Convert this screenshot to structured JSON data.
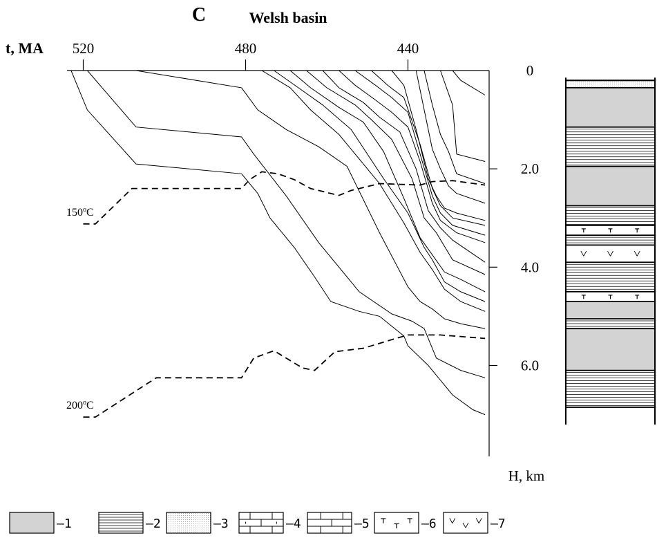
{
  "chart_data": {
    "type": "line",
    "panel_letter": "C",
    "title": "Welsh basin",
    "xlabel": "t, MA",
    "ylabel": "H, km",
    "x_ticks": [
      "520",
      "480",
      "440"
    ],
    "y_ticks": [
      "0",
      "2.0",
      "4.0",
      "6.0"
    ],
    "xlim": [
      524,
      420
    ],
    "ylim": [
      0,
      7.85
    ],
    "burial_curves": [
      {
        "x": [
          523,
          519,
          507,
          481,
          477,
          474,
          468,
          463,
          459,
          452,
          447,
          441,
          440,
          435,
          429,
          424,
          421
        ],
        "y": [
          0,
          0.8,
          1.9,
          2.1,
          2.5,
          3.0,
          3.6,
          4.2,
          4.7,
          4.9,
          5.0,
          5.4,
          5.6,
          6.0,
          6.6,
          6.9,
          7.0
        ]
      },
      {
        "x": [
          519,
          507,
          481,
          478,
          470,
          462,
          452,
          444,
          439,
          436,
          433,
          427,
          421
        ],
        "y": [
          0,
          1.15,
          1.35,
          1.7,
          2.55,
          3.5,
          4.5,
          4.95,
          5.1,
          5.25,
          5.85,
          6.1,
          6.25
        ]
      },
      {
        "x": [
          507,
          481,
          477,
          470,
          462,
          455,
          447,
          440,
          437,
          434,
          431,
          427,
          421
        ],
        "y": [
          0,
          0.35,
          0.8,
          1.2,
          1.55,
          1.95,
          3.3,
          4.4,
          4.7,
          4.85,
          5.05,
          5.15,
          5.25
        ]
      },
      {
        "x": [
          476,
          469,
          464,
          457,
          447,
          441,
          437,
          434,
          431,
          427,
          421
        ],
        "y": [
          0,
          0.35,
          0.8,
          1.3,
          2.3,
          3.1,
          3.7,
          4.05,
          4.45,
          4.7,
          4.9
        ]
      },
      {
        "x": [
          473,
          467,
          461,
          454,
          446,
          440,
          436,
          434,
          431,
          427,
          421
        ],
        "y": [
          0,
          0.35,
          0.7,
          1.2,
          2.2,
          2.9,
          3.6,
          3.85,
          4.3,
          4.5,
          4.7
        ]
      },
      {
        "x": [
          469,
          464,
          457,
          451,
          446,
          441,
          437,
          434,
          431,
          427,
          421
        ],
        "y": [
          0,
          0.35,
          0.75,
          1.05,
          1.65,
          2.6,
          3.4,
          3.75,
          4.1,
          4.25,
          4.5
        ]
      },
      {
        "x": [
          465,
          460,
          453,
          449,
          444,
          439,
          436,
          433,
          429,
          421
        ],
        "y": [
          0,
          0.35,
          0.7,
          1.0,
          1.4,
          2.2,
          3.0,
          3.3,
          3.85,
          4.15
        ]
      },
      {
        "x": [
          461,
          457,
          451,
          447,
          442,
          438,
          435,
          432,
          429,
          421
        ],
        "y": [
          0,
          0.35,
          0.65,
          0.95,
          1.25,
          2.0,
          2.85,
          3.2,
          3.45,
          3.9
        ]
      },
      {
        "x": [
          457,
          453,
          448,
          444,
          440,
          437,
          434,
          432,
          428,
          421
        ],
        "y": [
          0,
          0.3,
          0.6,
          0.85,
          1.15,
          1.85,
          2.7,
          3.05,
          3.3,
          3.5
        ]
      },
      {
        "x": [
          453,
          448,
          444,
          440,
          437,
          434,
          432,
          429,
          421
        ],
        "y": [
          0,
          0.3,
          0.55,
          0.85,
          1.7,
          2.55,
          2.9,
          3.15,
          3.35
        ]
      },
      {
        "x": [
          449,
          445,
          441,
          437,
          434,
          432,
          429,
          421
        ],
        "y": [
          0,
          0.3,
          0.55,
          1.5,
          2.4,
          2.75,
          3.0,
          3.15
        ]
      },
      {
        "x": [
          444,
          441,
          438,
          435,
          433,
          431,
          428,
          421
        ],
        "y": [
          0,
          0.3,
          1.2,
          2.2,
          2.55,
          2.8,
          2.9,
          3.05
        ]
      },
      {
        "x": [
          438,
          436,
          434,
          432,
          430,
          428,
          421
        ],
        "y": [
          0,
          0.8,
          1.6,
          2.0,
          2.35,
          2.5,
          2.7
        ]
      },
      {
        "x": [
          436,
          434,
          432,
          430,
          428,
          421
        ],
        "y": [
          0,
          0.7,
          1.3,
          1.65,
          2.1,
          2.3
        ]
      },
      {
        "x": [
          432,
          429,
          428,
          421
        ],
        "y": [
          0,
          0.7,
          1.7,
          1.85
        ]
      },
      {
        "x": [
          429,
          427,
          421
        ],
        "y": [
          0,
          0.2,
          0.5
        ]
      }
    ],
    "isotherms": [
      {
        "label": "150",
        "unit": "C",
        "x": [
          520,
          517,
          508,
          481,
          479,
          476,
          472,
          468,
          464,
          457,
          454,
          447,
          437,
          434,
          429,
          421
        ],
        "y": [
          3.12,
          3.12,
          2.4,
          2.4,
          2.22,
          2.06,
          2.1,
          2.22,
          2.4,
          2.54,
          2.44,
          2.3,
          2.33,
          2.26,
          2.24,
          2.33
        ]
      },
      {
        "label": "200",
        "unit": "C",
        "x": [
          520,
          517,
          502,
          481,
          478,
          473,
          466,
          463,
          458,
          451,
          443,
          440,
          432,
          421
        ],
        "y": [
          7.05,
          7.05,
          6.25,
          6.25,
          5.85,
          5.7,
          6.05,
          6.1,
          5.72,
          5.65,
          5.45,
          5.38,
          5.38,
          5.45
        ]
      }
    ],
    "lithology_column": {
      "top_km": 0.2,
      "bottom_km": 6.85,
      "layers": [
        {
          "pattern": 3,
          "from": 0.2,
          "to": 0.35
        },
        {
          "pattern": 1,
          "from": 0.35,
          "to": 1.15
        },
        {
          "pattern": 2,
          "from": 1.15,
          "to": 1.95
        },
        {
          "pattern": 1,
          "from": 1.95,
          "to": 2.75
        },
        {
          "pattern": 2,
          "from": 2.75,
          "to": 3.15
        },
        {
          "pattern": 6,
          "from": 3.15,
          "to": 3.35
        },
        {
          "pattern": 2,
          "from": 3.35,
          "to": 3.55
        },
        {
          "pattern": 7,
          "from": 3.55,
          "to": 3.9
        },
        {
          "pattern": 2,
          "from": 3.9,
          "to": 4.5
        },
        {
          "pattern": 6,
          "from": 4.5,
          "to": 4.7
        },
        {
          "pattern": 1,
          "from": 4.7,
          "to": 5.05
        },
        {
          "pattern": 2,
          "from": 5.05,
          "to": 5.25
        },
        {
          "pattern": 1,
          "from": 5.25,
          "to": 6.1
        },
        {
          "pattern": 2,
          "from": 6.1,
          "to": 6.85
        }
      ]
    },
    "legend": [
      {
        "pattern": 1,
        "label": "–1"
      },
      {
        "pattern": 2,
        "label": "–2"
      },
      {
        "pattern": 3,
        "label": "–3"
      },
      {
        "pattern": 4,
        "label": "–4"
      },
      {
        "pattern": 5,
        "label": "–5"
      },
      {
        "pattern": 6,
        "label": "–6"
      },
      {
        "pattern": 7,
        "label": "–7"
      }
    ],
    "colors": {
      "fill_1": "#d3d3d3",
      "line": "#000000"
    },
    "grid": false
  }
}
